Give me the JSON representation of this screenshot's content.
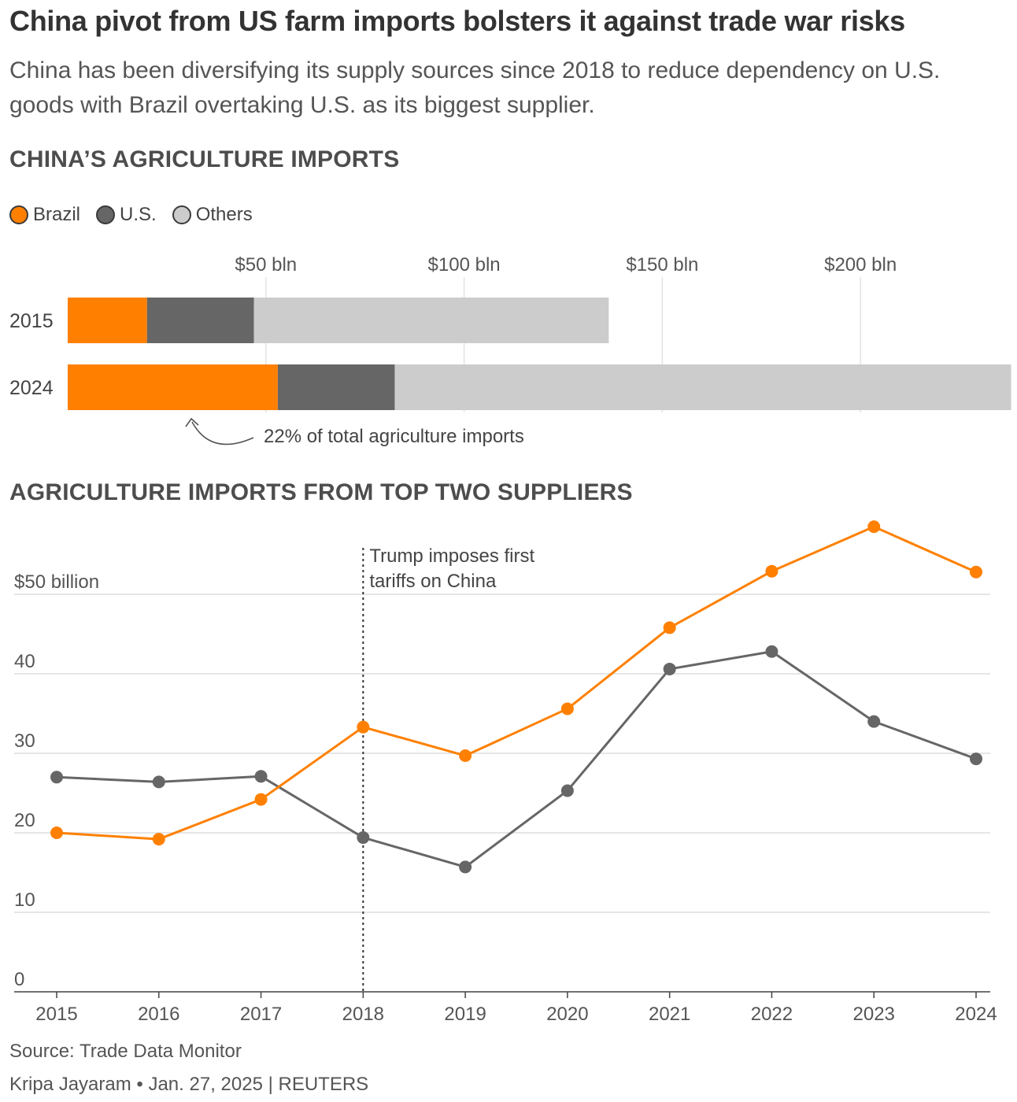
{
  "headline": "China pivot from US farm imports bolsters it against trade war risks",
  "subtitle": "China has been diversifying its supply sources since 2018 to reduce dependency on U.S. goods with Brazil overtaking U.S. as its biggest supplier.",
  "colors": {
    "brazil": "#ff8000",
    "us": "#666666",
    "others": "#cccccc"
  },
  "chart_data": [
    {
      "type": "bar",
      "orientation": "horizontal",
      "stacked": true,
      "title": "CHINA’S AGRICULTURE IMPORTS",
      "legend": [
        {
          "name": "Brazil",
          "color": "#ff8000"
        },
        {
          "name": "U.S.",
          "color": "#666666"
        },
        {
          "name": "Others",
          "color": "#cccccc"
        }
      ],
      "categories": [
        "2015",
        "2024"
      ],
      "series": [
        {
          "name": "Brazil",
          "values": [
            20,
            53
          ]
        },
        {
          "name": "U.S.",
          "values": [
            27,
            29.5
          ]
        },
        {
          "name": "Others",
          "values": [
            89.5,
            155.5
          ]
        }
      ],
      "xticks": [
        50,
        100,
        150,
        200
      ],
      "xtick_labels": [
        "$50 bln",
        "$100 bln",
        "$150 bln",
        "$200 bln"
      ],
      "xlim": [
        0,
        237.5
      ],
      "grid": true,
      "annotation": "22% of total agriculture imports"
    },
    {
      "type": "line",
      "title": "AGRICULTURE IMPORTS FROM TOP TWO SUPPLIERS",
      "x": [
        "2015",
        "2016",
        "2017",
        "2018",
        "2019",
        "2020",
        "2021",
        "2022",
        "2023",
        "2024"
      ],
      "series": [
        {
          "name": "Brazil",
          "values": [
            20,
            19.2,
            24.2,
            33.3,
            29.7,
            35.6,
            45.8,
            52.9,
            58.5,
            52.8
          ]
        },
        {
          "name": "U.S.",
          "values": [
            27,
            26.4,
            27.1,
            19.4,
            15.7,
            25.3,
            40.6,
            42.8,
            34,
            29.3
          ]
        }
      ],
      "ylim": [
        0,
        60
      ],
      "yticks": [
        0,
        10,
        20,
        30,
        40,
        50
      ],
      "ytick_labels": [
        "0",
        "10",
        "20",
        "30",
        "40",
        "$50 billion"
      ],
      "grid": true,
      "annotation": {
        "x": "2018",
        "lines": [
          "Trump imposes first",
          "tariffs on China"
        ]
      }
    }
  ],
  "source": "Source: Trade Data Monitor",
  "credit": "Kripa Jayaram • Jan. 27, 2025 | REUTERS"
}
